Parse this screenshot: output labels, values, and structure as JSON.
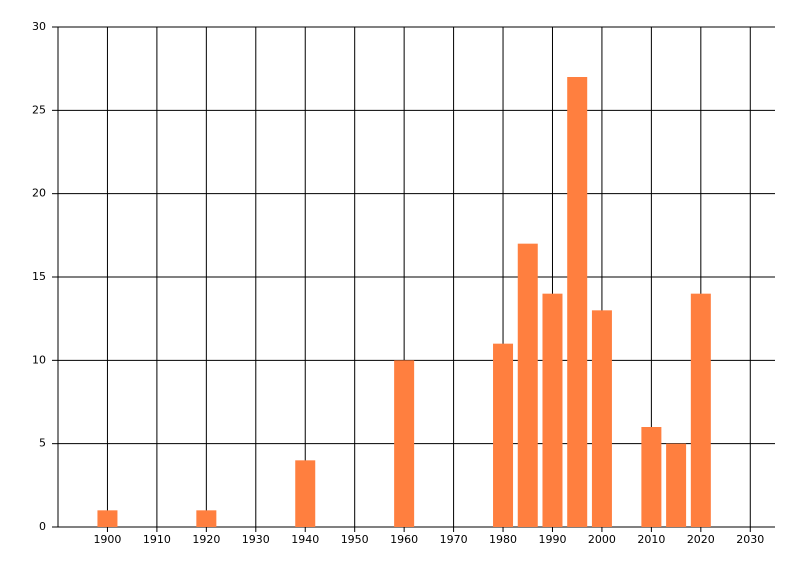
{
  "chart_data": {
    "type": "bar",
    "x": [
      1900,
      1920,
      1940,
      1960,
      1980,
      1985,
      1990,
      1995,
      2000,
      2010,
      2015,
      2020
    ],
    "values": [
      1,
      1,
      4,
      10,
      11,
      17,
      14,
      27,
      13,
      6,
      5,
      14
    ],
    "color": "#ff7f3f",
    "xlim": [
      1890,
      2035
    ],
    "xticks": [
      1900,
      1910,
      1920,
      1930,
      1940,
      1950,
      1960,
      1970,
      1980,
      1990,
      2000,
      2010,
      2020,
      2030
    ],
    "ylim": [
      0,
      30
    ],
    "yticks": [
      0,
      5,
      10,
      15,
      20,
      25,
      30
    ],
    "grid": true
  }
}
